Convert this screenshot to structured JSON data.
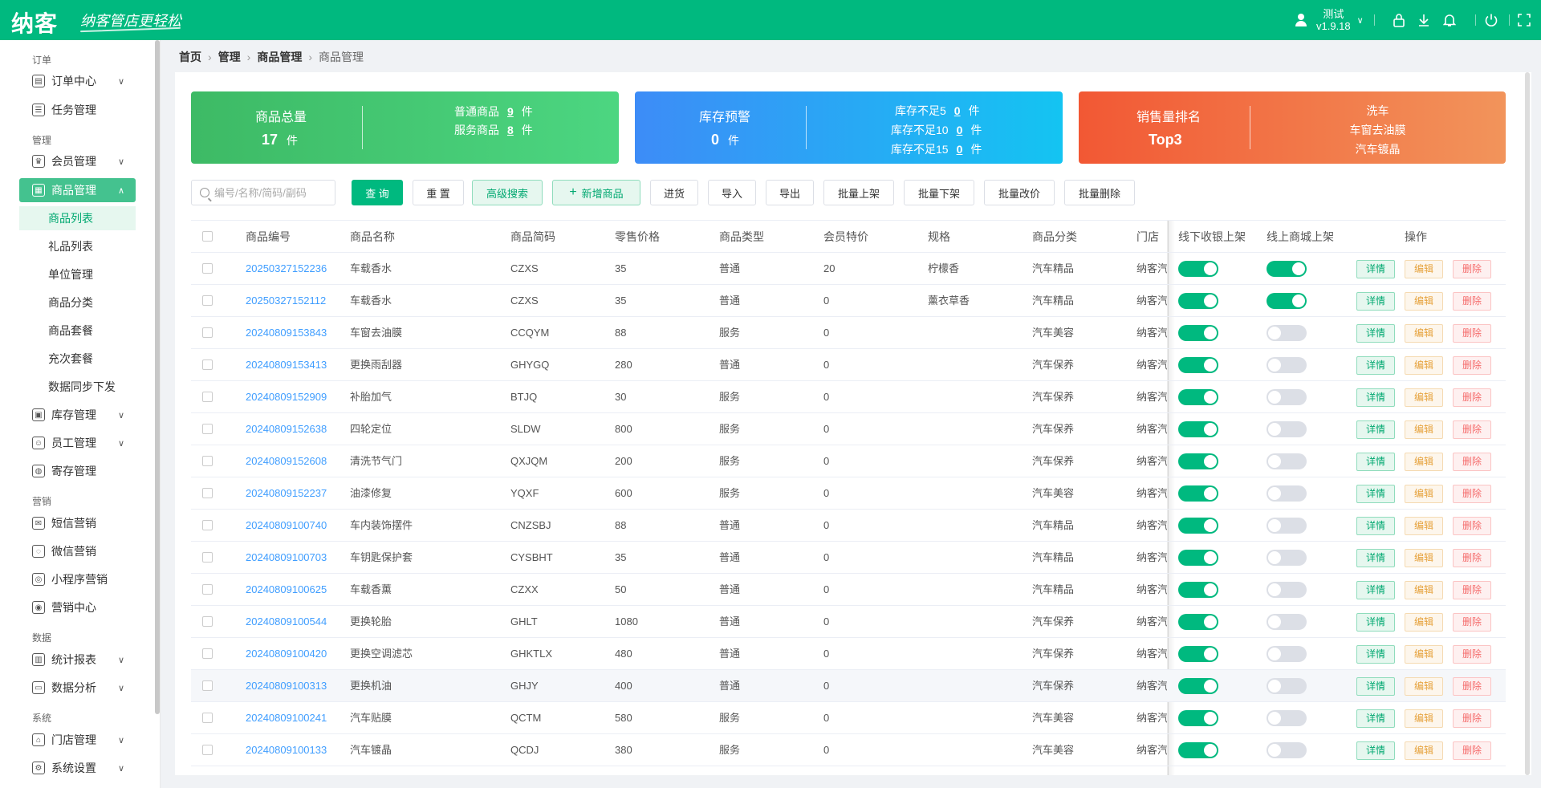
{
  "header": {
    "logo": "纳客",
    "slogan": "纳客管店更轻松",
    "user_name": "测试",
    "version": "v1.9.18"
  },
  "breadcrumb": [
    "首页",
    "管理",
    "商品管理",
    "商品管理"
  ],
  "sidebar": {
    "groups": [
      {
        "label": "订单",
        "items": [
          {
            "label": "订单中心",
            "icon": "order-icon",
            "chevron": true
          },
          {
            "label": "任务管理",
            "icon": "task-icon"
          }
        ]
      },
      {
        "label": "管理",
        "items": [
          {
            "label": "会员管理",
            "icon": "crown-icon",
            "chevron": true
          },
          {
            "label": "商品管理",
            "icon": "grid-icon",
            "chevron": true,
            "active": true
          }
        ]
      },
      {
        "label": "营销",
        "items": [
          {
            "label": "短信营销",
            "icon": "mail-icon"
          },
          {
            "label": "微信营销",
            "icon": "wechat-icon"
          },
          {
            "label": "小程序营销",
            "icon": "miniapp-icon"
          },
          {
            "label": "营销中心",
            "icon": "target-icon"
          }
        ]
      },
      {
        "label": "数据",
        "items": [
          {
            "label": "统计报表",
            "icon": "bar-chart-icon",
            "chevron": true
          },
          {
            "label": "数据分析",
            "icon": "monitor-icon",
            "chevron": true
          }
        ]
      },
      {
        "label": "系统",
        "items": [
          {
            "label": "门店管理",
            "icon": "store-icon",
            "chevron": true
          },
          {
            "label": "系统设置",
            "icon": "gear-icon",
            "chevron": true
          }
        ]
      }
    ],
    "sub_items": [
      "商品列表",
      "礼品列表",
      "单位管理",
      "商品分类",
      "商品套餐",
      "充次套餐",
      "数据同步下发"
    ],
    "after_sub": [
      {
        "label": "库存管理",
        "icon": "inventory-icon",
        "chevron": true
      },
      {
        "label": "员工管理",
        "icon": "person-icon",
        "chevron": true
      },
      {
        "label": "寄存管理",
        "icon": "deposit-icon"
      }
    ]
  },
  "cards": {
    "total": {
      "label": "商品总量",
      "count": "17",
      "unit": "件",
      "normal_label": "普通商品",
      "normal_count": "9",
      "service_label": "服务商品",
      "service_count": "8"
    },
    "stock": {
      "label": "库存预警",
      "count": "0",
      "unit": "件",
      "lines": [
        {
          "label": "库存不足5",
          "count": "0"
        },
        {
          "label": "库存不足10",
          "count": "0"
        },
        {
          "label": "库存不足15",
          "count": "0"
        }
      ]
    },
    "sales": {
      "label": "销售量排名",
      "top": "Top3",
      "items": [
        "洗车",
        "车窗去油膜",
        "汽车镀晶"
      ]
    }
  },
  "toolbar": {
    "search_placeholder": "编号/名称/简码/副码",
    "query": "查 询",
    "reset": "重 置",
    "advanced": "高级搜索",
    "add": "新增商品",
    "stock_in": "进货",
    "import": "导入",
    "export": "导出",
    "batch_on": "批量上架",
    "batch_off": "批量下架",
    "batch_price": "批量改价",
    "batch_delete": "批量删除"
  },
  "table": {
    "columns": [
      "商品编号",
      "商品名称",
      "商品简码",
      "零售价格",
      "商品类型",
      "会员特价",
      "规格",
      "商品分类",
      "门店",
      "线下收银上架",
      "线上商城上架",
      "操作"
    ],
    "actions": {
      "detail": "详情",
      "edit": "编辑",
      "delete": "删除"
    },
    "rows": [
      {
        "code": "20250327152236",
        "name": "车载香水",
        "short": "CZXS",
        "price": "35",
        "type": "普通",
        "member": "20",
        "spec": "柠檬香",
        "category": "汽车精品",
        "store": "纳客汽车",
        "offline": true,
        "online": true
      },
      {
        "code": "20250327152112",
        "name": "车载香水",
        "short": "CZXS",
        "price": "35",
        "type": "普通",
        "member": "0",
        "spec": "薰衣草香",
        "category": "汽车精品",
        "store": "纳客汽车",
        "offline": true,
        "online": true
      },
      {
        "code": "20240809153843",
        "name": "车窗去油膜",
        "short": "CCQYM",
        "price": "88",
        "type": "服务",
        "member": "0",
        "spec": "",
        "category": "汽车美容",
        "store": "纳客汽车",
        "offline": true,
        "online": false
      },
      {
        "code": "20240809153413",
        "name": "更换雨刮器",
        "short": "GHYGQ",
        "price": "280",
        "type": "普通",
        "member": "0",
        "spec": "",
        "category": "汽车保养",
        "store": "纳客汽车",
        "offline": true,
        "online": false
      },
      {
        "code": "20240809152909",
        "name": "补胎加气",
        "short": "BTJQ",
        "price": "30",
        "type": "服务",
        "member": "0",
        "spec": "",
        "category": "汽车保养",
        "store": "纳客汽车",
        "offline": true,
        "online": false
      },
      {
        "code": "20240809152638",
        "name": "四轮定位",
        "short": "SLDW",
        "price": "800",
        "type": "服务",
        "member": "0",
        "spec": "",
        "category": "汽车保养",
        "store": "纳客汽车",
        "offline": true,
        "online": false
      },
      {
        "code": "20240809152608",
        "name": "清洗节气门",
        "short": "QXJQM",
        "price": "200",
        "type": "服务",
        "member": "0",
        "spec": "",
        "category": "汽车保养",
        "store": "纳客汽车",
        "offline": true,
        "online": false
      },
      {
        "code": "20240809152237",
        "name": "油漆修复",
        "short": "YQXF",
        "price": "600",
        "type": "服务",
        "member": "0",
        "spec": "",
        "category": "汽车美容",
        "store": "纳客汽车",
        "offline": true,
        "online": false
      },
      {
        "code": "20240809100740",
        "name": "车内装饰摆件",
        "short": "CNZSBJ",
        "price": "88",
        "type": "普通",
        "member": "0",
        "spec": "",
        "category": "汽车精品",
        "store": "纳客汽车",
        "offline": true,
        "online": false
      },
      {
        "code": "20240809100703",
        "name": "车钥匙保护套",
        "short": "CYSBHT",
        "price": "35",
        "type": "普通",
        "member": "0",
        "spec": "",
        "category": "汽车精品",
        "store": "纳客汽车",
        "offline": true,
        "online": false
      },
      {
        "code": "20240809100625",
        "name": "车载香薰",
        "short": "CZXX",
        "price": "50",
        "type": "普通",
        "member": "0",
        "spec": "",
        "category": "汽车精品",
        "store": "纳客汽车",
        "offline": true,
        "online": false
      },
      {
        "code": "20240809100544",
        "name": "更换轮胎",
        "short": "GHLT",
        "price": "1080",
        "type": "普通",
        "member": "0",
        "spec": "",
        "category": "汽车保养",
        "store": "纳客汽车",
        "offline": true,
        "online": false
      },
      {
        "code": "20240809100420",
        "name": "更换空调滤芯",
        "short": "GHKTLX",
        "price": "480",
        "type": "普通",
        "member": "0",
        "spec": "",
        "category": "汽车保养",
        "store": "纳客汽车",
        "offline": true,
        "online": false
      },
      {
        "code": "20240809100313",
        "name": "更换机油",
        "short": "GHJY",
        "price": "400",
        "type": "普通",
        "member": "0",
        "spec": "",
        "category": "汽车保养",
        "store": "纳客汽车",
        "offline": true,
        "online": false
      },
      {
        "code": "20240809100241",
        "name": "汽车贴膜",
        "short": "QCTM",
        "price": "580",
        "type": "服务",
        "member": "0",
        "spec": "",
        "category": "汽车美容",
        "store": "纳客汽车",
        "offline": true,
        "online": false
      },
      {
        "code": "20240809100133",
        "name": "汽车镀晶",
        "short": "QCDJ",
        "price": "380",
        "type": "服务",
        "member": "0",
        "spec": "",
        "category": "汽车美容",
        "store": "纳客汽车",
        "offline": true,
        "online": false
      }
    ]
  }
}
